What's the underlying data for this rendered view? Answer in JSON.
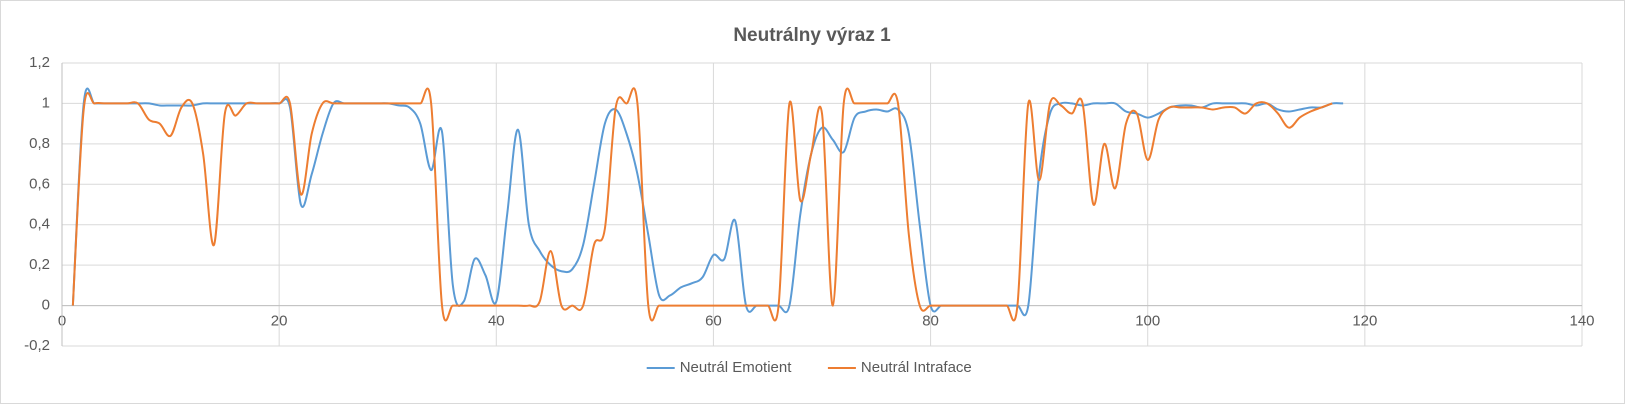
{
  "chart_data": {
    "type": "line",
    "title": "Neutrálny výraz 1",
    "x": [
      1,
      2,
      3,
      4,
      5,
      6,
      7,
      8,
      9,
      10,
      11,
      12,
      13,
      14,
      15,
      16,
      17,
      18,
      19,
      20,
      21,
      22,
      23,
      24,
      25,
      26,
      27,
      28,
      29,
      30,
      31,
      32,
      33,
      34,
      35,
      36,
      37,
      38,
      39,
      40,
      41,
      42,
      43,
      44,
      45,
      46,
      47,
      48,
      49,
      50,
      51,
      52,
      53,
      54,
      55,
      56,
      57,
      58,
      59,
      60,
      61,
      62,
      63,
      64,
      65,
      66,
      67,
      68,
      69,
      70,
      71,
      72,
      73,
      74,
      75,
      76,
      77,
      78,
      79,
      80,
      81,
      82,
      83,
      84,
      85,
      86,
      87,
      88,
      89,
      90,
      91,
      92,
      93,
      94,
      95,
      96,
      97,
      98,
      99,
      100,
      101,
      102,
      103,
      104,
      105,
      106,
      107,
      108,
      109,
      110,
      111,
      112,
      113,
      114,
      115,
      116,
      117,
      118
    ],
    "series": [
      {
        "name": "Neutrál Emotient",
        "color": "#5b9bd5",
        "values": [
          0,
          1,
          1,
          1,
          1,
          1,
          1,
          1,
          0.99,
          0.99,
          0.99,
          0.99,
          1,
          1,
          1,
          1,
          1,
          1,
          1,
          1,
          0.98,
          0.5,
          0.65,
          0.85,
          1,
          1,
          1,
          1,
          1,
          1,
          0.99,
          0.98,
          0.9,
          0.67,
          0.86,
          0.1,
          0.02,
          0.23,
          0.15,
          0.02,
          0.45,
          0.87,
          0.4,
          0.27,
          0.2,
          0.17,
          0.18,
          0.3,
          0.6,
          0.9,
          0.97,
          0.85,
          0.65,
          0.35,
          0.05,
          0.05,
          0.09,
          0.11,
          0.14,
          0.25,
          0.23,
          0.42,
          0,
          0,
          0,
          0,
          0,
          0.45,
          0.75,
          0.88,
          0.82,
          0.76,
          0.93,
          0.96,
          0.97,
          0.96,
          0.97,
          0.85,
          0.4,
          0,
          0,
          0,
          0,
          0,
          0,
          0,
          0,
          0,
          0,
          0.65,
          0.95,
          1,
          1,
          0.99,
          1,
          1,
          1,
          0.96,
          0.95,
          0.93,
          0.95,
          0.98,
          0.99,
          0.99,
          0.98,
          1,
          1,
          1,
          1,
          0.99,
          1,
          0.97,
          0.96,
          0.97,
          0.98,
          0.98,
          1,
          1
        ]
      },
      {
        "name": "Neutrál Intraface",
        "color": "#ed7d31",
        "values": [
          0,
          0.97,
          1,
          1,
          1,
          1,
          1,
          0.92,
          0.9,
          0.84,
          0.98,
          1,
          0.75,
          0.3,
          0.95,
          0.94,
          1,
          1,
          1,
          1,
          1,
          0.55,
          0.85,
          1,
          1,
          1,
          1,
          1,
          1,
          1,
          1,
          1,
          1,
          1,
          0,
          0,
          0,
          0,
          0,
          0,
          0,
          0,
          0,
          0.02,
          0.27,
          0,
          0,
          0,
          0.3,
          0.38,
          0.98,
          1,
          1,
          0,
          0,
          0,
          0,
          0,
          0,
          0,
          0,
          0,
          0,
          0,
          0,
          0,
          1,
          0.52,
          0.75,
          0.95,
          0,
          1,
          1,
          1,
          1,
          1,
          1,
          0.35,
          0,
          0,
          0,
          0,
          0,
          0,
          0,
          0,
          0,
          0,
          1,
          0.62,
          1,
          0.99,
          0.95,
          1,
          0.5,
          0.8,
          0.58,
          0.9,
          0.95,
          0.72,
          0.92,
          0.98,
          0.98,
          0.98,
          0.98,
          0.97,
          0.98,
          0.98,
          0.95,
          1,
          1,
          0.95,
          0.88,
          0.93,
          0.96,
          0.98,
          1,
          null
        ]
      }
    ],
    "xlim": [
      0,
      140
    ],
    "xticks": [
      0,
      20,
      40,
      60,
      80,
      100,
      120,
      140
    ],
    "ylim": [
      -0.2,
      1.2
    ],
    "yticks": [
      {
        "value": -0.2,
        "label": "-0,2"
      },
      0,
      {
        "value": 0.2,
        "label": "0,2"
      },
      {
        "value": 0.4,
        "label": "0,4"
      },
      {
        "value": 0.6,
        "label": "0,6"
      },
      {
        "value": 0.8,
        "label": "0,8"
      },
      1,
      {
        "value": 1.2,
        "label": "1,2"
      }
    ],
    "grid": true,
    "legend": "bottom"
  }
}
